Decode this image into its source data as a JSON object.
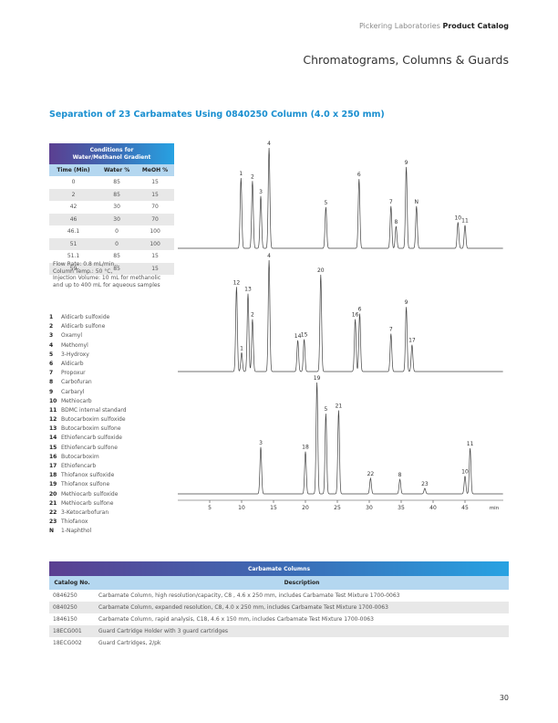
{
  "header": {
    "brand_regular": "Pickering Laboratories",
    "brand_bold": "Product Catalog",
    "title": "Chromatograms, Columns & Guards"
  },
  "section_title": "Separation of 23 Carbamates Using 0840250 Column (4.0 x 250 mm)",
  "conditions": {
    "caption_line1": "Conditions for",
    "caption_line2": "Water/Methanol Gradient",
    "headers": [
      "Time (Min)",
      "Water %",
      "MeOH %"
    ],
    "rows": [
      [
        "0",
        "85",
        "15"
      ],
      [
        "2",
        "85",
        "15"
      ],
      [
        "42",
        "30",
        "70"
      ],
      [
        "46",
        "30",
        "70"
      ],
      [
        "46.1",
        "0",
        "100"
      ],
      [
        "51",
        "0",
        "100"
      ],
      [
        "51.1",
        "85",
        "15"
      ],
      [
        "59",
        "85",
        "15"
      ]
    ],
    "notes": [
      "Flow Rate: 0.8 mL/min.,",
      "Column Temp.: 50 °C,",
      "Injection Volume: 10 mL for methanolic",
      "and up to 400 mL for aqueous samples"
    ]
  },
  "compounds": [
    {
      "num": "1",
      "name": "Aldicarb sulfoxide"
    },
    {
      "num": "2",
      "name": "Aldicarb sulfone"
    },
    {
      "num": "3",
      "name": "Oxamyl"
    },
    {
      "num": "4",
      "name": "Methomyl"
    },
    {
      "num": "5",
      "name": "3-Hydroxy"
    },
    {
      "num": "6",
      "name": "Aldicarb"
    },
    {
      "num": "7",
      "name": "Propoxur"
    },
    {
      "num": "8",
      "name": "Carbofuran"
    },
    {
      "num": "9",
      "name": "Carbaryl"
    },
    {
      "num": "10",
      "name": "Methiocarb"
    },
    {
      "num": "11",
      "name": "BDMC internal standard"
    },
    {
      "num": "12",
      "name": "Butocarboxim sulfoxide"
    },
    {
      "num": "13",
      "name": "Butocarboxim sulfone"
    },
    {
      "num": "14",
      "name": "Ethiofencarb sulfoxide"
    },
    {
      "num": "15",
      "name": "Ethiofencarb sulfone"
    },
    {
      "num": "16",
      "name": "Butocarboxim"
    },
    {
      "num": "17",
      "name": "Ethiofencarb"
    },
    {
      "num": "18",
      "name": "Thiofanox sulfoxide"
    },
    {
      "num": "19",
      "name": "Thiofanox sulfone"
    },
    {
      "num": "20",
      "name": "Methiocarb sulfoxide"
    },
    {
      "num": "21",
      "name": "Methiocarb sulfone"
    },
    {
      "num": "22",
      "name": "3-Ketocarbofuran"
    },
    {
      "num": "23",
      "name": "Thiofanox"
    },
    {
      "num": "N",
      "name": "1-Naphthol"
    }
  ],
  "chart_data": {
    "type": "line",
    "title": "Separation of 23 Carbamates Using 0840250 Column (4.0 x 250 mm)",
    "xlabel": "min",
    "xlim": [
      0,
      51
    ],
    "x_ticks": [
      5,
      10,
      15,
      20,
      25,
      30,
      35,
      40,
      45
    ],
    "traces": [
      {
        "peaks": [
          {
            "label": "1",
            "x": 9.9,
            "h": 0.7
          },
          {
            "label": "2",
            "x": 11.7,
            "h": 0.67
          },
          {
            "label": "3",
            "x": 13.0,
            "h": 0.52
          },
          {
            "label": "4",
            "x": 14.3,
            "h": 1.0
          },
          {
            "label": "5",
            "x": 23.2,
            "h": 0.41
          },
          {
            "label": "6",
            "x": 28.4,
            "h": 0.69
          },
          {
            "label": "7",
            "x": 33.4,
            "h": 0.42
          },
          {
            "label": "8",
            "x": 34.2,
            "h": 0.22
          },
          {
            "label": "9",
            "x": 35.8,
            "h": 0.81
          },
          {
            "label": "N",
            "x": 37.4,
            "h": 0.42
          },
          {
            "label": "10",
            "x": 43.9,
            "h": 0.26
          },
          {
            "label": "11",
            "x": 45.0,
            "h": 0.23
          }
        ]
      },
      {
        "peaks": [
          {
            "label": "12",
            "x": 9.2,
            "h": 0.76
          },
          {
            "label": "1",
            "x": 10.0,
            "h": 0.17
          },
          {
            "label": "13",
            "x": 11.0,
            "h": 0.7
          },
          {
            "label": "2",
            "x": 11.7,
            "h": 0.47
          },
          {
            "label": "4",
            "x": 14.3,
            "h": 1.0
          },
          {
            "label": "14",
            "x": 18.8,
            "h": 0.28
          },
          {
            "label": "15",
            "x": 19.8,
            "h": 0.29
          },
          {
            "label": "20",
            "x": 22.4,
            "h": 0.87
          },
          {
            "label": "16",
            "x": 27.8,
            "h": 0.47
          },
          {
            "label": "6",
            "x": 28.5,
            "h": 0.52
          },
          {
            "label": "7",
            "x": 33.4,
            "h": 0.34
          },
          {
            "label": "9",
            "x": 35.8,
            "h": 0.58
          },
          {
            "label": "17",
            "x": 36.7,
            "h": 0.24
          }
        ]
      },
      {
        "peaks": [
          {
            "label": "3",
            "x": 13.0,
            "h": 0.42
          },
          {
            "label": "18",
            "x": 20.0,
            "h": 0.38
          },
          {
            "label": "19",
            "x": 21.8,
            "h": 1.0
          },
          {
            "label": "5",
            "x": 23.2,
            "h": 0.72
          },
          {
            "label": "21",
            "x": 25.2,
            "h": 0.75
          },
          {
            "label": "22",
            "x": 30.2,
            "h": 0.14
          },
          {
            "label": "8",
            "x": 34.8,
            "h": 0.13
          },
          {
            "label": "23",
            "x": 38.7,
            "h": 0.05
          },
          {
            "label": "10",
            "x": 45.0,
            "h": 0.16
          },
          {
            "label": "11",
            "x": 45.8,
            "h": 0.41
          }
        ]
      }
    ]
  },
  "columns_table": {
    "caption": "Carbamate Columns",
    "headers": [
      "Catalog No.",
      "Description"
    ],
    "rows": [
      [
        "0846250",
        "Carbamate Column, high resolution/capacity, C8 , 4.6 x 250 mm, includes Carbamate Test Mixture 1700-0063"
      ],
      [
        "0840250",
        "Carbamate Column, expanded resolution, C8, 4.0 x 250 mm, includes Carbamate Test Mixture 1700-0063"
      ],
      [
        "1846150",
        "Carbamate Column, rapid analysis, C18, 4.6 x 150 mm, includes Carbamate Test Mixture 1700-0063"
      ],
      [
        "18ECG001",
        "Guard Cartridge Holder with 3 guard cartridges"
      ],
      [
        "18ECG002",
        "Guard Cartridges, 2/pk"
      ]
    ]
  },
  "page_number": "30"
}
